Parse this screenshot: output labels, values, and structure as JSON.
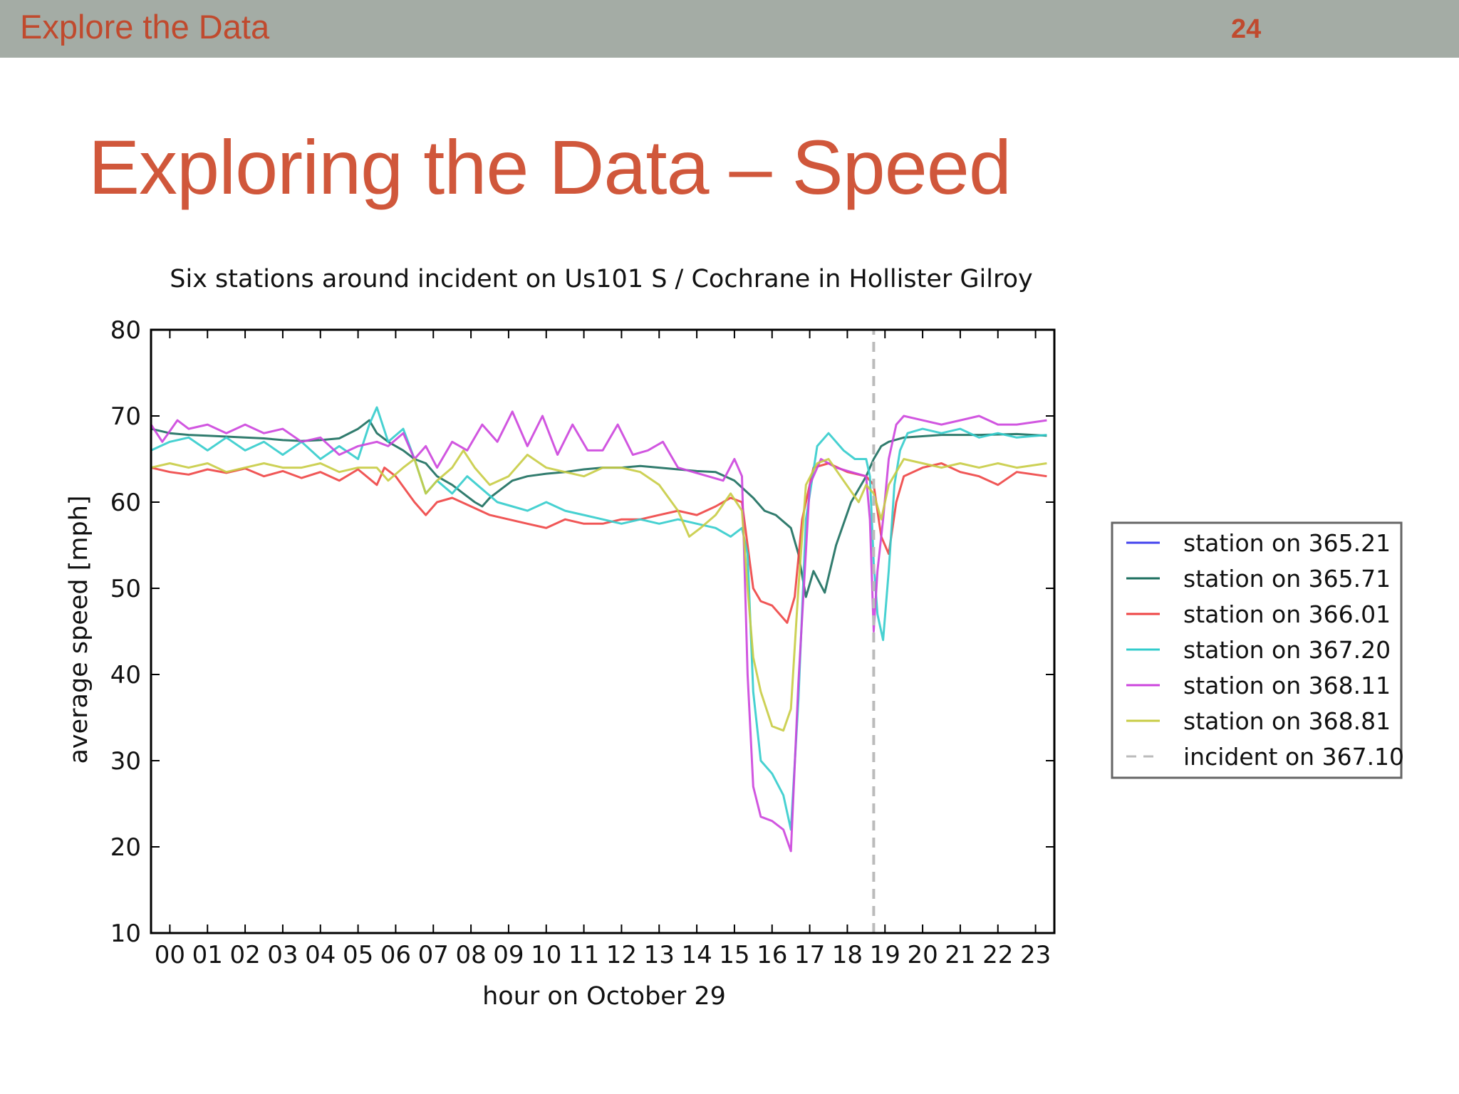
{
  "header": {
    "title": "Explore the Data",
    "page_number": "24"
  },
  "slide": {
    "title": "Exploring the Data – Speed"
  },
  "colors": {
    "header_bg": "#a4aca5",
    "accent": "#d0573b"
  },
  "chart_data": {
    "type": "line",
    "title": "Six stations around incident on Us101 S / Cochrane in Hollister Gilroy",
    "xlabel": "hour on October 29",
    "ylabel": "average speed [mph]",
    "xlim": [
      0,
      24
    ],
    "ylim": [
      10,
      80
    ],
    "x_ticks": [
      "00",
      "01",
      "02",
      "03",
      "04",
      "05",
      "06",
      "07",
      "08",
      "09",
      "10",
      "11",
      "12",
      "13",
      "14",
      "15",
      "16",
      "17",
      "18",
      "19",
      "20",
      "21",
      "22",
      "23"
    ],
    "y_ticks": [
      10,
      20,
      30,
      40,
      50,
      60,
      70,
      80
    ],
    "grid": false,
    "legend_position": "outside-right",
    "series": [
      {
        "name": "station on 365.21",
        "color": "#4444ee",
        "x": [],
        "y": []
      },
      {
        "name": "station on 365.71",
        "color": "#1b6e5e",
        "x": [
          0,
          0.5,
          1,
          1.5,
          2,
          2.5,
          3,
          3.5,
          4,
          4.5,
          5,
          5.5,
          5.8,
          6,
          6.3,
          6.7,
          7,
          7.3,
          7.6,
          8,
          8.3,
          8.6,
          8.8,
          9,
          9.3,
          9.6,
          10,
          10.5,
          11,
          11.5,
          12,
          12.5,
          13,
          13.5,
          14,
          14.5,
          15,
          15.5,
          16,
          16.3,
          16.6,
          17,
          17.2,
          17.4,
          17.6,
          17.9,
          18.2,
          18.6,
          19,
          19.2,
          19.4,
          19.6,
          20,
          21,
          22,
          23,
          23.8
        ],
        "y": [
          68.5,
          68,
          67.8,
          67.7,
          67.6,
          67.5,
          67.4,
          67.2,
          67.1,
          67.2,
          67.4,
          68.5,
          69.5,
          68,
          67,
          66,
          65,
          64.5,
          63,
          62,
          61,
          60,
          59.5,
          60.5,
          61.5,
          62.5,
          63,
          63.3,
          63.5,
          63.8,
          64,
          64,
          64.2,
          64,
          63.8,
          63.6,
          63.5,
          62.5,
          60.5,
          59,
          58.5,
          57,
          54,
          49,
          52,
          49.5,
          55,
          60,
          63,
          65,
          66.5,
          67,
          67.5,
          67.8,
          67.8,
          67.9,
          67.7
        ]
      },
      {
        "name": "station on 366.01",
        "color": "#ee4444",
        "x": [
          0,
          0.5,
          1,
          1.5,
          2,
          2.5,
          3,
          3.5,
          4,
          4.5,
          5,
          5.5,
          6,
          6.2,
          6.5,
          7,
          7.3,
          7.6,
          8,
          8.5,
          9,
          9.5,
          10,
          10.5,
          11,
          11.5,
          12,
          12.5,
          13,
          13.5,
          14,
          14.5,
          15,
          15.4,
          15.7,
          15.85,
          16,
          16.2,
          16.5,
          16.9,
          17.1,
          17.3,
          17.6,
          18,
          18.5,
          19,
          19.2,
          19.4,
          19.6,
          19.8,
          20,
          20.5,
          21,
          21.5,
          22,
          22.5,
          23,
          23.8
        ],
        "y": [
          64,
          63.5,
          63.2,
          63.8,
          63.4,
          63.9,
          63,
          63.6,
          62.8,
          63.5,
          62.5,
          63.8,
          62,
          64,
          63,
          60,
          58.5,
          60,
          60.5,
          59.5,
          58.5,
          58,
          57.5,
          57,
          58,
          57.5,
          57.5,
          58,
          58,
          58.5,
          59,
          58.5,
          59.5,
          60.5,
          60,
          55,
          50,
          48.5,
          48,
          46,
          49,
          58,
          64,
          64.5,
          63.5,
          63,
          62,
          56,
          54,
          60,
          63,
          64,
          64.5,
          63.5,
          63,
          62,
          63.5,
          63
        ]
      },
      {
        "name": "station on 367.20",
        "color": "#33cccc",
        "x": [
          0,
          0.5,
          1,
          1.5,
          2,
          2.5,
          3,
          3.5,
          4,
          4.5,
          5,
          5.5,
          5.8,
          6,
          6.3,
          6.7,
          7,
          7.3,
          7.6,
          8,
          8.4,
          8.8,
          9.2,
          9.6,
          10,
          10.5,
          11,
          11.5,
          12,
          12.5,
          13,
          13.5,
          14,
          14.5,
          15,
          15.4,
          15.7,
          15.85,
          16,
          16.2,
          16.5,
          16.8,
          17,
          17.2,
          17.4,
          17.7,
          18,
          18.4,
          18.7,
          19,
          19.1,
          19.2,
          19.3,
          19.45,
          19.6,
          19.75,
          19.9,
          20.1,
          20.5,
          21,
          21.5,
          22,
          22.5,
          23,
          23.8
        ],
        "y": [
          66,
          67,
          67.5,
          66,
          67.5,
          66,
          67,
          65.5,
          67,
          65,
          66.5,
          65,
          69,
          71,
          67,
          68.5,
          65,
          61,
          62.5,
          61,
          63,
          61.5,
          60,
          59.5,
          59,
          60,
          59,
          58.5,
          58,
          57.5,
          58,
          57.5,
          58,
          57.5,
          57,
          56,
          57,
          54,
          38,
          30,
          28.5,
          26,
          22,
          37,
          58,
          66.5,
          68,
          66,
          65,
          65,
          63,
          53,
          47,
          44,
          52,
          62,
          66,
          68,
          68.5,
          68,
          68.5,
          67.5,
          68,
          67.5,
          67.8
        ]
      },
      {
        "name": "station on 368.11",
        "color": "#cc44dd",
        "x": [
          0,
          0.3,
          0.7,
          1,
          1.5,
          2,
          2.5,
          3,
          3.5,
          4,
          4.5,
          5,
          5.5,
          6,
          6.3,
          6.7,
          7,
          7.3,
          7.6,
          8,
          8.4,
          8.8,
          9.2,
          9.6,
          10,
          10.4,
          10.8,
          11.2,
          11.6,
          12,
          12.4,
          12.8,
          13.2,
          13.6,
          14,
          14.4,
          14.8,
          15.2,
          15.5,
          15.7,
          15.85,
          16,
          16.2,
          16.5,
          16.8,
          17,
          17.2,
          17.5,
          17.8,
          18.2,
          18.6,
          19,
          19.1,
          19.2,
          19.3,
          19.45,
          19.6,
          19.8,
          20,
          20.5,
          21,
          21.5,
          22,
          22.5,
          23,
          23.8
        ],
        "y": [
          69,
          67,
          69.5,
          68.5,
          69,
          68,
          69,
          68,
          68.5,
          67,
          67.5,
          65.5,
          66.5,
          67,
          66.5,
          68,
          65,
          66.5,
          64,
          67,
          66,
          69,
          67,
          70.5,
          66.5,
          70,
          65.5,
          69,
          66,
          66,
          69,
          65.5,
          66,
          67,
          64,
          63.5,
          63,
          62.5,
          65,
          63,
          40,
          27,
          23.5,
          23,
          22,
          19.5,
          39,
          62,
          65,
          64,
          63.5,
          63,
          58,
          45,
          52,
          58,
          65,
          69,
          70,
          69.5,
          69,
          69.5,
          70,
          69,
          69,
          69.5
        ]
      },
      {
        "name": "station on 368.81",
        "color": "#c8cc44",
        "x": [
          0,
          0.5,
          1,
          1.5,
          2,
          2.5,
          3,
          3.5,
          4,
          4.5,
          5,
          5.5,
          6,
          6.3,
          6.7,
          7,
          7.3,
          7.6,
          8,
          8.3,
          8.6,
          9,
          9.5,
          10,
          10.5,
          11,
          11.5,
          12,
          12.5,
          13,
          13.5,
          14,
          14.3,
          14.6,
          15,
          15.4,
          15.7,
          15.85,
          16,
          16.2,
          16.5,
          16.8,
          17,
          17.2,
          17.4,
          17.7,
          18,
          18.4,
          18.8,
          19,
          19.2,
          19.4,
          19.6,
          20,
          20.5,
          21,
          21.5,
          22,
          22.5,
          23,
          23.8
        ],
        "y": [
          64,
          64.5,
          64,
          64.5,
          63.5,
          64,
          64.5,
          64,
          64,
          64.5,
          63.5,
          64,
          64,
          62.5,
          64,
          65,
          61,
          62.5,
          64,
          66,
          64,
          62,
          63,
          65.5,
          64,
          63.5,
          63,
          64,
          64,
          63.5,
          62,
          59,
          56,
          57,
          58.5,
          61,
          59,
          50,
          42,
          38,
          34,
          33.5,
          36,
          50,
          62,
          64.5,
          65,
          62.5,
          60,
          62,
          61,
          58,
          62,
          65,
          64.5,
          64,
          64.5,
          64,
          64.5,
          64,
          64.5
        ]
      },
      {
        "name": "incident on 367.10",
        "color": "#bbbbbb",
        "dashed": true,
        "x": [
          19.2,
          19.2
        ],
        "y": [
          10,
          80
        ]
      }
    ]
  }
}
